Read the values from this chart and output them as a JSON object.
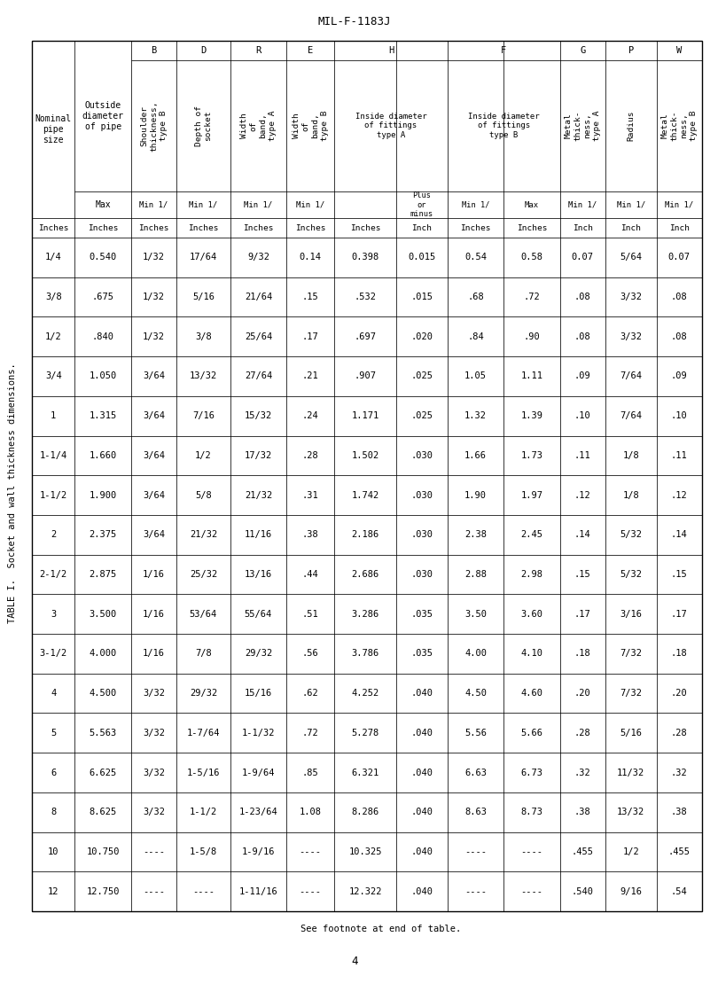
{
  "title_top": "MIL-F-1183J",
  "table_title": "TABLE I.  Socket and wall thickness dimensions.",
  "footnote": "See footnote at end of table.",
  "page_num": "4",
  "rows": [
    [
      "1/4",
      "0.540",
      "1/32",
      "17/64",
      "9/32",
      "0.14",
      "0.398",
      "0.015",
      "0.54",
      "0.58",
      "0.07",
      "5/64",
      "0.07"
    ],
    [
      "3/8",
      ".675",
      "1/32",
      "5/16",
      "21/64",
      ".15",
      ".532",
      ".015",
      ".68",
      ".72",
      ".08",
      "3/32",
      ".08"
    ],
    [
      "1/2",
      ".840",
      "1/32",
      "3/8",
      "25/64",
      ".17",
      ".697",
      ".020",
      ".84",
      ".90",
      ".08",
      "3/32",
      ".08"
    ],
    [
      "3/4",
      "1.050",
      "3/64",
      "13/32",
      "27/64",
      ".21",
      ".907",
      ".025",
      "1.05",
      "1.11",
      ".09",
      "7/64",
      ".09"
    ],
    [
      "1",
      "1.315",
      "3/64",
      "7/16",
      "15/32",
      ".24",
      "1.171",
      ".025",
      "1.32",
      "1.39",
      ".10",
      "7/64",
      ".10"
    ],
    [
      "1-1/4",
      "1.660",
      "3/64",
      "1/2",
      "17/32",
      ".28",
      "1.502",
      ".030",
      "1.66",
      "1.73",
      ".11",
      "1/8",
      ".11"
    ],
    [
      "1-1/2",
      "1.900",
      "3/64",
      "5/8",
      "21/32",
      ".31",
      "1.742",
      ".030",
      "1.90",
      "1.97",
      ".12",
      "1/8",
      ".12"
    ],
    [
      "2",
      "2.375",
      "3/64",
      "21/32",
      "11/16",
      ".38",
      "2.186",
      ".030",
      "2.38",
      "2.45",
      ".14",
      "5/32",
      ".14"
    ],
    [
      "2-1/2",
      "2.875",
      "1/16",
      "25/32",
      "13/16",
      ".44",
      "2.686",
      ".030",
      "2.88",
      "2.98",
      ".15",
      "5/32",
      ".15"
    ],
    [
      "3",
      "3.500",
      "1/16",
      "53/64",
      "55/64",
      ".51",
      "3.286",
      ".035",
      "3.50",
      "3.60",
      ".17",
      "3/16",
      ".17"
    ],
    [
      "3-1/2",
      "4.000",
      "1/16",
      "7/8",
      "29/32",
      ".56",
      "3.786",
      ".035",
      "4.00",
      "4.10",
      ".18",
      "7/32",
      ".18"
    ],
    [
      "4",
      "4.500",
      "3/32",
      "29/32",
      "15/16",
      ".62",
      "4.252",
      ".040",
      "4.50",
      "4.60",
      ".20",
      "7/32",
      ".20"
    ],
    [
      "5",
      "5.563",
      "3/32",
      "1-7/64",
      "1-1/32",
      ".72",
      "5.278",
      ".040",
      "5.56",
      "5.66",
      ".28",
      "5/16",
      ".28"
    ],
    [
      "6",
      "6.625",
      "3/32",
      "1-5/16",
      "1-9/64",
      ".85",
      "6.321",
      ".040",
      "6.63",
      "6.73",
      ".32",
      "11/32",
      ".32"
    ],
    [
      "8",
      "8.625",
      "3/32",
      "1-1/2",
      "1-23/64",
      "1.08",
      "8.286",
      ".040",
      "8.63",
      "8.73",
      ".38",
      "13/32",
      ".38"
    ],
    [
      "10",
      "10.750",
      "----",
      "1-5/8",
      "1-9/16",
      "----",
      "10.325",
      ".040",
      "----",
      "----",
      ".455",
      "1/2",
      ".455"
    ],
    [
      "12",
      "12.750",
      "----",
      "----",
      "1-11/16",
      "----",
      "12.322",
      ".040",
      "----",
      "----",
      ".540",
      "9/16",
      ".54"
    ]
  ],
  "background": "#ffffff",
  "text_color": "#000000",
  "line_color": "#000000"
}
